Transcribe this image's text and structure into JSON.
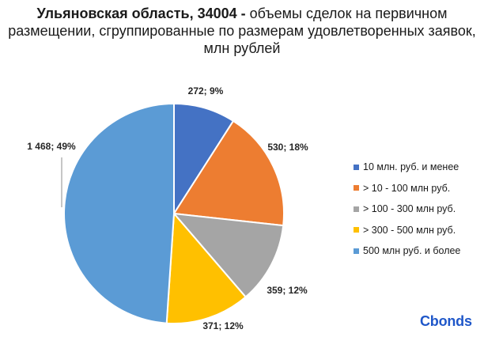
{
  "title": {
    "bold": "Ульяновская область, 34004 -",
    "rest": " объемы сделок на первичном размещении, сгруппированные по размерам удовлетворенных заявок, млн рублей"
  },
  "logo": "Cbonds",
  "chart_data": {
    "type": "pie",
    "title": "Ульяновская область, 34004 - объемы сделок на первичном размещении, сгруппированные по размерам удовлетворенных заявок, млн рублей",
    "legend_position": "right",
    "slices": [
      {
        "name": "10 млн. руб. и менее",
        "value": 272,
        "percent": 9,
        "label": "272; 9%",
        "color": "#4472c4"
      },
      {
        "name": "> 10 - 100 млн руб.",
        "value": 530,
        "percent": 18,
        "label": "530; 18%",
        "color": "#ed7d31"
      },
      {
        "name": "> 100 - 300 млн руб.",
        "value": 359,
        "percent": 12,
        "label": "359; 12%",
        "color": "#a5a5a5"
      },
      {
        "name": "> 300 - 500 млн руб.",
        "value": 371,
        "percent": 12,
        "label": "371; 12%",
        "color": "#ffc000"
      },
      {
        "name": "500 млн руб. и более",
        "value": 1468,
        "percent": 49,
        "label": "1 468; 49%",
        "color": "#5b9bd5"
      }
    ]
  }
}
